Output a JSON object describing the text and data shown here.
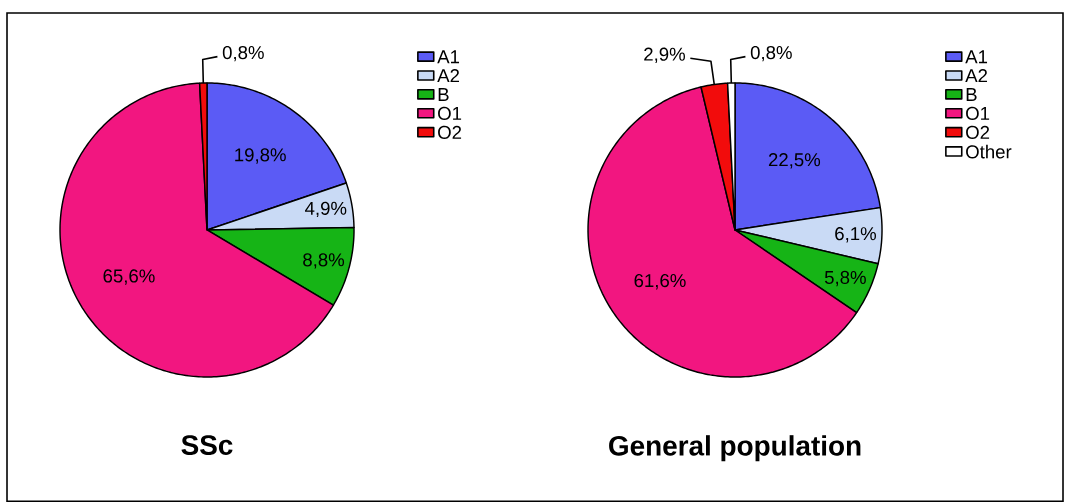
{
  "chart_data": [
    {
      "type": "pie",
      "title": "SSc",
      "categories": [
        "A1",
        "A2",
        "B",
        "O1",
        "O2"
      ],
      "values": [
        19.8,
        4.9,
        8.8,
        65.6,
        0.8
      ],
      "colors": [
        "#5b5bf5",
        "#c9daf5",
        "#16b416",
        "#f21680",
        "#f20c0c"
      ],
      "value_labels": [
        "19,8%",
        "4,9%",
        "8,8%",
        "65,6%",
        "0,8%"
      ],
      "legend": "right"
    },
    {
      "type": "pie",
      "title": "General population",
      "categories": [
        "A1",
        "A2",
        "B",
        "O1",
        "O2",
        "Other"
      ],
      "values": [
        22.5,
        6.1,
        5.8,
        61.6,
        2.9,
        0.8
      ],
      "colors": [
        "#5b5bf5",
        "#c9daf5",
        "#16b416",
        "#f21680",
        "#f20c0c",
        "#ffffff"
      ],
      "value_labels": [
        "22,5%",
        "6,1%",
        "5,8%",
        "61,6%",
        "2,9%",
        "0,8%"
      ],
      "legend": "right"
    }
  ]
}
